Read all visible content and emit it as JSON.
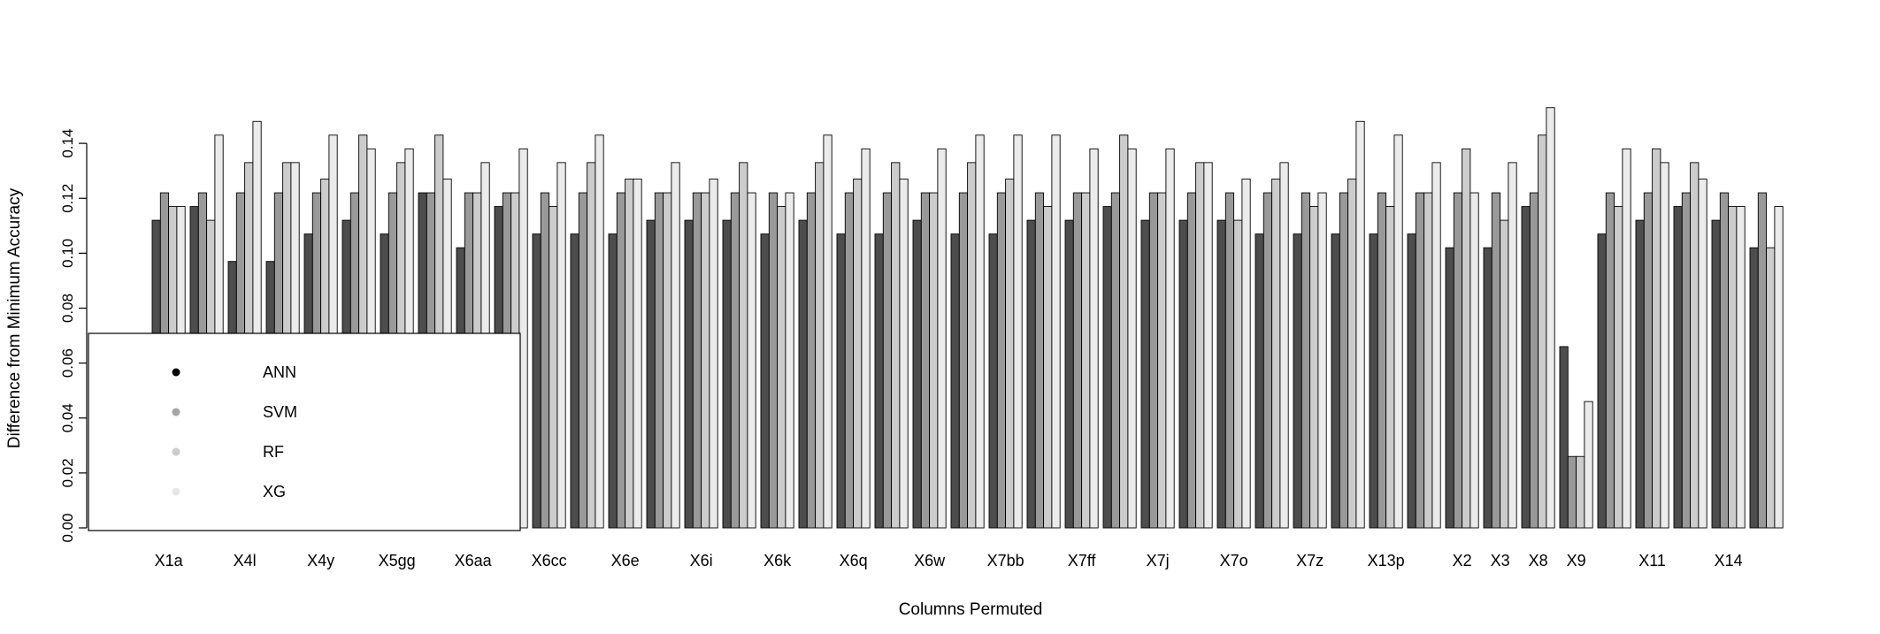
{
  "chart_data": {
    "type": "bar",
    "title": "",
    "xlabel": "Columns Permuted",
    "ylabel": "Difference from Minimum Accuracy",
    "ylim": [
      0,
      0.16
    ],
    "yticks": [
      "0.00",
      "0.02",
      "0.04",
      "0.06",
      "0.08",
      "0.10",
      "0.12",
      "0.14"
    ],
    "grid": false,
    "legend_position": "bottom-left",
    "categories": [
      "X1a",
      "X4l",
      "X4y",
      "X5gg",
      "X6aa",
      "X6cc",
      "X6e",
      "X6i",
      "X6k",
      "X6q",
      "X6w",
      "X7bb",
      "X7ff",
      "X7j",
      "X7o",
      "X7z",
      "X13p",
      "X2",
      "X3",
      "X8",
      "X9",
      "X11",
      "X14"
    ],
    "groups": [
      {
        "label": "X1a",
        "values": [
          0.112,
          0.122,
          0.117,
          0.117
        ]
      },
      {
        "label": "",
        "values": [
          0.117,
          0.122,
          0.112,
          0.143
        ]
      },
      {
        "label": "X4l",
        "values": [
          0.097,
          0.122,
          0.133,
          0.148
        ]
      },
      {
        "label": "",
        "values": [
          0.097,
          0.122,
          0.133,
          0.133
        ]
      },
      {
        "label": "X4y",
        "values": [
          0.107,
          0.122,
          0.127,
          0.143
        ]
      },
      {
        "label": "",
        "values": [
          0.112,
          0.122,
          0.143,
          0.138
        ]
      },
      {
        "label": "X5gg",
        "values": [
          0.107,
          0.122,
          0.133,
          0.138
        ]
      },
      {
        "label": "",
        "values": [
          0.122,
          0.122,
          0.143,
          0.127
        ]
      },
      {
        "label": "X6aa",
        "values": [
          0.102,
          0.122,
          0.122,
          0.133
        ]
      },
      {
        "label": "",
        "values": [
          0.117,
          0.122,
          0.122,
          0.138
        ]
      },
      {
        "label": "X6cc",
        "values": [
          0.107,
          0.122,
          0.117,
          0.133
        ]
      },
      {
        "label": "",
        "values": [
          0.107,
          0.122,
          0.133,
          0.143
        ]
      },
      {
        "label": "X6e",
        "values": [
          0.107,
          0.122,
          0.127,
          0.127
        ]
      },
      {
        "label": "",
        "values": [
          0.112,
          0.122,
          0.122,
          0.133
        ]
      },
      {
        "label": "X6i",
        "values": [
          0.112,
          0.122,
          0.122,
          0.127
        ]
      },
      {
        "label": "",
        "values": [
          0.112,
          0.122,
          0.133,
          0.122
        ]
      },
      {
        "label": "X6k",
        "values": [
          0.107,
          0.122,
          0.117,
          0.122
        ]
      },
      {
        "label": "",
        "values": [
          0.112,
          0.122,
          0.133,
          0.143
        ]
      },
      {
        "label": "X6q",
        "values": [
          0.107,
          0.122,
          0.127,
          0.138
        ]
      },
      {
        "label": "",
        "values": [
          0.107,
          0.122,
          0.133,
          0.127
        ]
      },
      {
        "label": "X6w",
        "values": [
          0.112,
          0.122,
          0.122,
          0.138
        ]
      },
      {
        "label": "",
        "values": [
          0.107,
          0.122,
          0.133,
          0.143
        ]
      },
      {
        "label": "X7bb",
        "values": [
          0.107,
          0.122,
          0.127,
          0.143
        ]
      },
      {
        "label": "",
        "values": [
          0.112,
          0.122,
          0.117,
          0.143
        ]
      },
      {
        "label": "X7ff",
        "values": [
          0.112,
          0.122,
          0.122,
          0.138
        ]
      },
      {
        "label": "",
        "values": [
          0.117,
          0.122,
          0.143,
          0.138
        ]
      },
      {
        "label": "X7j",
        "values": [
          0.112,
          0.122,
          0.122,
          0.138
        ]
      },
      {
        "label": "",
        "values": [
          0.112,
          0.122,
          0.133,
          0.133
        ]
      },
      {
        "label": "X7o",
        "values": [
          0.112,
          0.122,
          0.112,
          0.127
        ]
      },
      {
        "label": "",
        "values": [
          0.107,
          0.122,
          0.127,
          0.133
        ]
      },
      {
        "label": "X7z",
        "values": [
          0.107,
          0.122,
          0.117,
          0.122
        ]
      },
      {
        "label": "",
        "values": [
          0.107,
          0.122,
          0.127,
          0.148
        ]
      },
      {
        "label": "X13p",
        "values": [
          0.107,
          0.122,
          0.117,
          0.143
        ]
      },
      {
        "label": "",
        "values": [
          0.107,
          0.122,
          0.122,
          0.133
        ]
      },
      {
        "label": "X2",
        "values": [
          0.102,
          0.122,
          0.138,
          0.122
        ]
      },
      {
        "label": "X3",
        "values": [
          0.102,
          0.122,
          0.112,
          0.133
        ]
      },
      {
        "label": "X8",
        "values": [
          0.117,
          0.122,
          0.143,
          0.153
        ]
      },
      {
        "label": "X9",
        "values": [
          0.066,
          0.026,
          0.026,
          0.046
        ]
      },
      {
        "label": "",
        "values": [
          0.107,
          0.122,
          0.117,
          0.138
        ]
      },
      {
        "label": "X11",
        "values": [
          0.112,
          0.122,
          0.138,
          0.133
        ]
      },
      {
        "label": "",
        "values": [
          0.117,
          0.122,
          0.133,
          0.127
        ]
      },
      {
        "label": "X14",
        "values": [
          0.112,
          0.122,
          0.117,
          0.117
        ]
      },
      {
        "label": "",
        "values": [
          0.102,
          0.122,
          0.102,
          0.117
        ]
      }
    ],
    "series": [
      {
        "name": "ANN",
        "color": "#4d4d4d"
      },
      {
        "name": "SVM",
        "color": "#999999"
      },
      {
        "name": "RF",
        "color": "#cccccc"
      },
      {
        "name": "XG",
        "color": "#ebebeb"
      }
    ],
    "legend": {
      "entries": [
        "ANN",
        "SVM",
        "RF",
        "XG"
      ],
      "dot_colors": [
        "#000000",
        "#a6a6a6",
        "#cccccc",
        "#e6e6e6"
      ]
    }
  }
}
